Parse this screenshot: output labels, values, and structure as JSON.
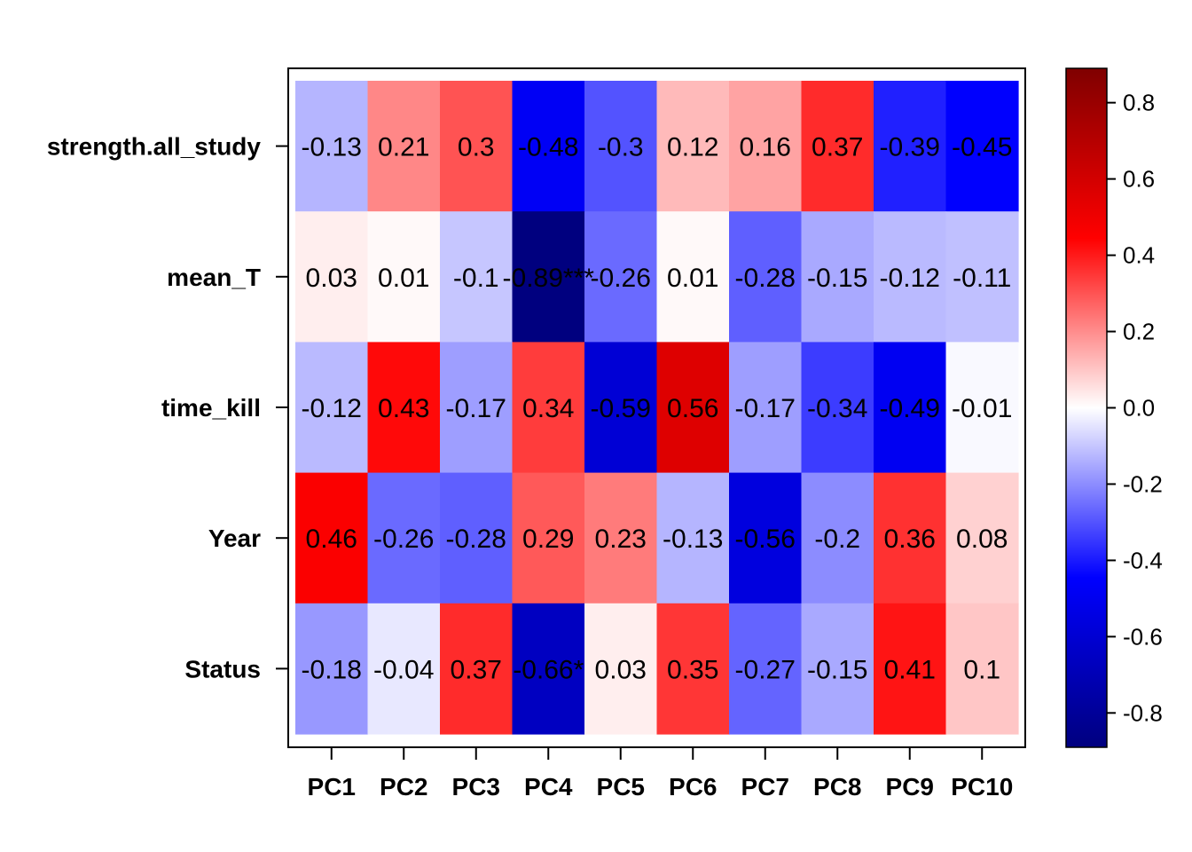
{
  "chart_data": {
    "type": "heatmap",
    "rows": [
      "strength.all_study",
      "mean_T",
      "time_kill",
      "Year",
      "Status"
    ],
    "columns": [
      "PC1",
      "PC2",
      "PC3",
      "PC4",
      "PC5",
      "PC6",
      "PC7",
      "PC8",
      "PC9",
      "PC10"
    ],
    "values": [
      [
        -0.13,
        0.21,
        0.3,
        -0.48,
        -0.3,
        0.12,
        0.16,
        0.37,
        -0.39,
        -0.45
      ],
      [
        0.03,
        0.01,
        -0.1,
        -0.89,
        -0.26,
        0.01,
        -0.28,
        -0.15,
        -0.12,
        -0.11
      ],
      [
        -0.12,
        0.43,
        -0.17,
        0.34,
        -0.59,
        0.56,
        -0.17,
        -0.34,
        -0.49,
        -0.01
      ],
      [
        0.46,
        -0.26,
        -0.28,
        0.29,
        0.23,
        -0.13,
        -0.56,
        -0.2,
        0.36,
        0.08
      ],
      [
        -0.18,
        -0.04,
        0.37,
        -0.66,
        0.03,
        0.35,
        -0.27,
        -0.15,
        0.41,
        0.1
      ]
    ],
    "cell_labels": [
      [
        "-0.13",
        "0.21",
        "0.3",
        "-0.48",
        "-0.3",
        "0.12",
        "0.16",
        "0.37",
        "-0.39",
        "-0.45"
      ],
      [
        "0.03",
        "0.01",
        "-0.1",
        "-0.89***",
        "-0.26",
        "0.01",
        "-0.28",
        "-0.15",
        "-0.12",
        "-0.11"
      ],
      [
        "-0.12",
        "0.43",
        "-0.17",
        "0.34",
        "-0.59",
        "0.56",
        "-0.17",
        "-0.34",
        "-0.49",
        "-0.01"
      ],
      [
        "0.46",
        "-0.26",
        "-0.28",
        "0.29",
        "0.23",
        "-0.13",
        "-0.56",
        "-0.2",
        "0.36",
        "0.08"
      ],
      [
        "-0.18",
        "-0.04",
        "0.37",
        "-0.66*",
        "0.03",
        "0.35",
        "-0.27",
        "-0.15",
        "0.41",
        "0.1"
      ]
    ],
    "color_scale": {
      "range": [
        -0.89,
        0.89
      ],
      "stops": [
        "#00007F",
        "#0000FF",
        "#FFFFFF",
        "#FF0000",
        "#7F0000"
      ],
      "ticks": [
        -0.8,
        -0.6,
        -0.4,
        -0.2,
        0.0,
        0.2,
        0.4,
        0.6,
        0.8
      ],
      "tick_labels": [
        "-0.8",
        "-0.6",
        "-0.4",
        "-0.2",
        "0.0",
        "0.2",
        "0.4",
        "0.6",
        "0.8"
      ]
    },
    "legend": "right",
    "grid": false
  }
}
